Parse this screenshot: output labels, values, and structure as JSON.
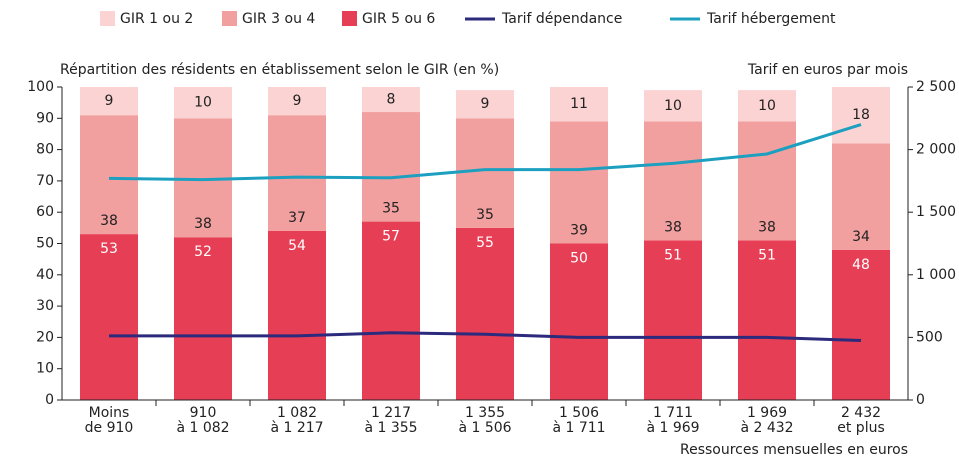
{
  "chart_data": {
    "type": "stacked-bar-line",
    "y_label": "Répartition des résidents en établissement selon le GIR (en %)",
    "y2_label": "Tarif en euros par mois",
    "x_label": "Ressources mensuelles en euros",
    "categories": [
      [
        "Moins",
        "de 910"
      ],
      [
        "910",
        "à 1 082"
      ],
      [
        "1 082",
        "à 1 217"
      ],
      [
        "1 217",
        "à 1 355"
      ],
      [
        "1 355",
        "à 1 506"
      ],
      [
        "1 506",
        "à 1 711"
      ],
      [
        "1 711",
        "à 1 969"
      ],
      [
        "1 969",
        "à 2 432"
      ],
      [
        "2 432",
        "et plus"
      ]
    ],
    "series": [
      {
        "name": "GIR 1 ou 2",
        "kind": "bar",
        "color": "#fbd3d3",
        "label_color": "#222",
        "values": [
          9,
          10,
          9,
          8,
          9,
          11,
          10,
          10,
          18
        ]
      },
      {
        "name": "GIR 3 ou 4",
        "kind": "bar",
        "color": "#f2a09f",
        "label_color": "#222",
        "values": [
          38,
          38,
          37,
          35,
          35,
          39,
          38,
          38,
          34
        ]
      },
      {
        "name": "GIR 5 ou 6",
        "kind": "bar",
        "color": "#e63e55",
        "label_color": "#fff",
        "values": [
          53,
          52,
          54,
          57,
          55,
          50,
          51,
          51,
          48
        ]
      },
      {
        "name": "Tarif dépendance",
        "kind": "line",
        "axis": "y2",
        "color": "#2c2a7c",
        "values": [
          512,
          512,
          512,
          537,
          525,
          500,
          500,
          500,
          475
        ]
      },
      {
        "name": "Tarif hébergement",
        "kind": "line",
        "axis": "y2",
        "color": "#1da0c0",
        "values": [
          1770,
          1760,
          1780,
          1775,
          1840,
          1840,
          1890,
          1965,
          2200
        ]
      }
    ],
    "ylim": [
      0,
      100
    ],
    "yticks": [
      0,
      10,
      20,
      30,
      40,
      50,
      60,
      70,
      80,
      90,
      100
    ],
    "y2lim": [
      0,
      2500
    ],
    "y2ticks": [
      0,
      500,
      {
        "value": 1000,
        "label": "1 000"
      },
      {
        "value": 1500,
        "label": "1 500"
      },
      {
        "value": 2000,
        "label": "2 000"
      },
      {
        "value": 2500,
        "label": "2 500"
      }
    ]
  }
}
